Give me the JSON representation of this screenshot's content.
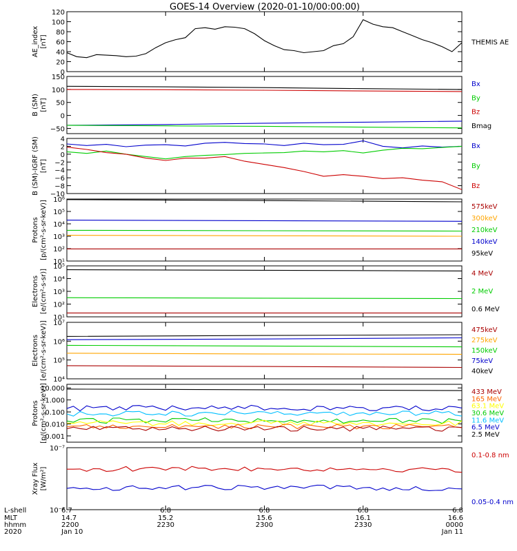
{
  "title": "GOES-14 Overview (2020-01-10/00:00:00)",
  "chart_data": [
    {
      "id": "ae",
      "type": "line",
      "ylabel": [
        "AE_index",
        "[nT]"
      ],
      "yscale": "linear",
      "ylim": [
        0,
        120
      ],
      "yticks": [
        0,
        20,
        40,
        60,
        80,
        100,
        120
      ],
      "yticklabels": [
        "0",
        "20",
        "40",
        "60",
        "80",
        "100",
        "120"
      ],
      "series": [
        {
          "name": "THEMIS AE",
          "color": "#000000",
          "x": [
            0,
            3,
            6,
            9,
            12,
            15,
            18,
            21,
            24,
            27,
            30,
            33,
            36,
            39,
            42,
            45,
            48,
            51,
            54,
            57,
            60,
            63,
            66,
            69,
            72,
            75,
            78,
            81,
            84,
            87,
            90,
            93,
            96,
            99,
            102,
            105,
            108,
            111,
            114,
            117,
            120
          ],
          "y": [
            38,
            30,
            28,
            34,
            33,
            32,
            30,
            31,
            36,
            48,
            58,
            64,
            68,
            86,
            88,
            85,
            90,
            89,
            86,
            76,
            62,
            52,
            44,
            42,
            38,
            40,
            42,
            52,
            56,
            70,
            104,
            95,
            90,
            88,
            80,
            72,
            64,
            58,
            50,
            40,
            58
          ]
        }
      ],
      "legend": [
        {
          "label": "THEMIS AE",
          "color": "#000000"
        }
      ]
    },
    {
      "id": "bsm",
      "type": "line",
      "ylabel": [
        "B (SM)",
        "[nT]"
      ],
      "yscale": "linear",
      "ylim": [
        -70,
        150
      ],
      "yticks": [
        -50,
        0,
        50,
        100,
        150
      ],
      "yticklabels": [
        "−50",
        "0",
        "50",
        "100",
        "150"
      ],
      "series": [
        {
          "name": "Bx",
          "color": "#0000cc",
          "x": [
            0,
            30,
            60,
            90,
            120
          ],
          "y": [
            -38,
            -35,
            -30,
            -26,
            -22
          ]
        },
        {
          "name": "By",
          "color": "#00cc00",
          "x": [
            0,
            30,
            60,
            90,
            120
          ],
          "y": [
            -38,
            -40,
            -42,
            -45,
            -48
          ]
        },
        {
          "name": "Bz",
          "color": "#cc0000",
          "x": [
            0,
            30,
            60,
            90,
            120
          ],
          "y": [
            100,
            99,
            97,
            94,
            92
          ]
        },
        {
          "name": "Bmag",
          "color": "#000000",
          "x": [
            0,
            30,
            60,
            90,
            120
          ],
          "y": [
            112,
            110,
            107,
            103,
            100
          ]
        }
      ],
      "legend": [
        {
          "label": "Bx",
          "color": "#0000cc"
        },
        {
          "label": "By",
          "color": "#00cc00"
        },
        {
          "label": "Bz",
          "color": "#cc0000"
        },
        {
          "label": "Bmag",
          "color": "#000000"
        }
      ]
    },
    {
      "id": "bigrf",
      "type": "line",
      "ylabel": [
        "B (SM)-IGRF (SM)",
        "[nT]"
      ],
      "yscale": "linear",
      "ylim": [
        -10,
        4
      ],
      "yticks": [
        -10,
        -8,
        -6,
        -4,
        -2,
        0,
        2,
        4
      ],
      "yticklabels": [
        "−10",
        "−8",
        "−6",
        "−4",
        "−2",
        "0",
        "2",
        "4"
      ],
      "series": [
        {
          "name": "Bx",
          "color": "#0000cc",
          "x": [
            0,
            6,
            12,
            18,
            24,
            30,
            36,
            42,
            48,
            54,
            60,
            66,
            72,
            78,
            84,
            90,
            96,
            102,
            108,
            114,
            120
          ],
          "y": [
            2.6,
            2.2,
            2.5,
            1.9,
            2.3,
            2.4,
            2.1,
            2.8,
            3.0,
            2.7,
            2.6,
            2.2,
            2.8,
            2.4,
            2.5,
            3.4,
            2.0,
            1.6,
            2.1,
            1.8,
            2.0
          ]
        },
        {
          "name": "By",
          "color": "#00cc00",
          "x": [
            0,
            6,
            12,
            18,
            24,
            30,
            36,
            42,
            48,
            54,
            60,
            66,
            72,
            78,
            84,
            90,
            96,
            102,
            108,
            114,
            120
          ],
          "y": [
            0.6,
            0.2,
            0.8,
            0.0,
            -0.6,
            -1.2,
            -0.6,
            -0.3,
            -0.1,
            0.2,
            0.3,
            0.4,
            0.8,
            0.6,
            0.9,
            0.3,
            1.0,
            1.5,
            1.4,
            1.7,
            2.0
          ]
        },
        {
          "name": "Bz",
          "color": "#cc0000",
          "x": [
            0,
            6,
            12,
            18,
            24,
            30,
            36,
            42,
            48,
            54,
            60,
            66,
            72,
            78,
            84,
            90,
            96,
            102,
            108,
            114,
            120
          ],
          "y": [
            1.8,
            1.2,
            0.4,
            0.0,
            -1.0,
            -1.6,
            -1.0,
            -1.0,
            -0.6,
            -1.8,
            -2.6,
            -3.4,
            -4.4,
            -5.6,
            -5.2,
            -5.6,
            -6.2,
            -6.0,
            -6.6,
            -7.0,
            -9.0
          ]
        }
      ],
      "legend": [
        {
          "label": "Bx",
          "color": "#0000cc"
        },
        {
          "label": "By",
          "color": "#00cc00"
        },
        {
          "label": "Bz",
          "color": "#cc0000"
        }
      ]
    },
    {
      "id": "protons_low",
      "type": "line",
      "ylabel": [
        "Protons",
        "[p/(cm²-s-sr-keV)]"
      ],
      "yscale": "log",
      "ylim": [
        10,
        1000000
      ],
      "yticks": [
        10,
        100,
        1000,
        10000,
        100000,
        1000000
      ],
      "yticklabels": [
        "10¹",
        "10²",
        "10³",
        "10⁴",
        "10⁵",
        "10⁶"
      ],
      "series": [
        {
          "name": "95keV",
          "color": "#000000",
          "x": [
            0,
            60,
            120
          ],
          "y": [
            900000,
            750000,
            600000
          ]
        },
        {
          "name": "140keV",
          "color": "#0000cc",
          "x": [
            0,
            60,
            120
          ],
          "y": [
            20000,
            18000,
            16000
          ]
        },
        {
          "name": "210keV",
          "color": "#00cc00",
          "x": [
            0,
            60,
            120
          ],
          "y": [
            3000,
            2800,
            2600
          ]
        },
        {
          "name": "300keV",
          "color": "#ffa500",
          "x": [
            0,
            60,
            120
          ],
          "y": [
            1200,
            1100,
            1000
          ]
        },
        {
          "name": "575keV",
          "color": "#aa0000",
          "x": [
            0,
            60,
            120
          ],
          "y": [
            95,
            95,
            95
          ]
        }
      ],
      "legend": [
        {
          "label": "575keV",
          "color": "#aa0000"
        },
        {
          "label": "300keV",
          "color": "#ffa500"
        },
        {
          "label": "210keV",
          "color": "#00cc00"
        },
        {
          "label": "140keV",
          "color": "#0000cc"
        },
        {
          "label": "95keV",
          "color": "#000000"
        }
      ]
    },
    {
      "id": "electrons_mev",
      "type": "line",
      "ylabel": [
        "Electrons",
        "[e/(cm²-s-sr)]"
      ],
      "yscale": "log",
      "ylim": [
        10,
        100000
      ],
      "yticks": [
        10,
        100,
        1000,
        10000,
        100000
      ],
      "yticklabels": [
        "10¹",
        "10²",
        "10³",
        "10⁴",
        "10⁵"
      ],
      "series": [
        {
          "name": "0.6 MeV",
          "color": "#000000",
          "x": [
            0,
            60,
            120
          ],
          "y": [
            50000,
            45000,
            40000
          ]
        },
        {
          "name": "2 MeV",
          "color": "#00cc00",
          "x": [
            0,
            60,
            120
          ],
          "y": [
            320,
            290,
            270
          ]
        },
        {
          "name": "4 MeV",
          "color": "#aa0000",
          "x": [
            0,
            60,
            120
          ],
          "y": [
            20,
            20,
            20
          ]
        }
      ],
      "legend": [
        {
          "label": "4 MeV",
          "color": "#aa0000"
        },
        {
          "label": "2 MeV",
          "color": "#00cc00"
        },
        {
          "label": "0.6 MeV",
          "color": "#000000"
        }
      ]
    },
    {
      "id": "electrons_kev",
      "type": "line",
      "ylabel": [
        "Electrons",
        "[e/(cm²-s-sr-keV)]"
      ],
      "yscale": "log",
      "ylim": [
        10000,
        10000000
      ],
      "yticks": [
        10000,
        100000,
        1000000,
        10000000
      ],
      "yticklabels": [
        "10⁴",
        "10⁵",
        "10⁶",
        "10⁷"
      ],
      "series": [
        {
          "name": "40keV",
          "color": "#000000",
          "x": [
            0,
            60,
            120
          ],
          "y": [
            1800000,
            2000000,
            2200000
          ]
        },
        {
          "name": "75keV",
          "color": "#0000cc",
          "x": [
            0,
            60,
            120
          ],
          "y": [
            1200000,
            1300000,
            1500000
          ]
        },
        {
          "name": "150keV",
          "color": "#00cc00",
          "x": [
            0,
            60,
            120
          ],
          "y": [
            600000,
            550000,
            500000
          ]
        },
        {
          "name": "275keV",
          "color": "#ffa500",
          "x": [
            0,
            60,
            120
          ],
          "y": [
            230000,
            210000,
            200000
          ]
        },
        {
          "name": "475keV",
          "color": "#aa0000",
          "x": [
            0,
            60,
            120
          ],
          "y": [
            50000,
            45000,
            40000
          ]
        }
      ],
      "legend": [
        {
          "label": "475keV",
          "color": "#aa0000"
        },
        {
          "label": "275keV",
          "color": "#ffa500"
        },
        {
          "label": "150keV",
          "color": "#00cc00"
        },
        {
          "label": "75keV",
          "color": "#0000cc"
        },
        {
          "label": "40keV",
          "color": "#000000"
        }
      ]
    },
    {
      "id": "protons_mev",
      "type": "line",
      "ylabel": [
        "Protons",
        "[p/(cm²-s-sr-keV)]"
      ],
      "yscale": "log",
      "ylim": [
        0.0003,
        20
      ],
      "yticks": [
        0.001,
        0.01,
        0.1,
        1,
        10
      ],
      "yticklabels": [
        "0.001",
        "0.010",
        "0.100",
        "1.000",
        "10.000"
      ],
      "series": [
        {
          "name": "2.5 MeV",
          "color": "#000000",
          "x": [
            0,
            60,
            120
          ],
          "y": [
            8,
            7,
            6
          ]
        },
        {
          "name": "6.5 MeV",
          "color": "#0000cc",
          "x": [
            0,
            60,
            120
          ],
          "y": [
            0.2,
            0.22,
            0.18
          ],
          "noisy": true
        },
        {
          "name": "11.6 MeV",
          "color": "#00bfff",
          "x": [
            0,
            60,
            120
          ],
          "y": [
            0.07,
            0.08,
            0.07
          ],
          "noisy": true
        },
        {
          "name": "30.6 MeV",
          "color": "#00cc00",
          "x": [
            0,
            60,
            120
          ],
          "y": [
            0.018,
            0.02,
            0.018
          ],
          "noisy": true
        },
        {
          "name": "63.1 MeV",
          "color": "#ffff00",
          "x": [
            0,
            60,
            120
          ],
          "y": [
            0.012,
            0.012,
            0.012
          ],
          "noisy": true
        },
        {
          "name": "165 MeV",
          "color": "#ff6600",
          "x": [
            0,
            60,
            120
          ],
          "y": [
            0.006,
            0.006,
            0.006
          ],
          "noisy": true
        },
        {
          "name": "433 MeV",
          "color": "#aa0000",
          "x": [
            0,
            60,
            120
          ],
          "y": [
            0.004,
            0.004,
            0.004
          ],
          "noisy": true
        }
      ],
      "legend": [
        {
          "label": "433 MeV",
          "color": "#aa0000"
        },
        {
          "label": "165 MeV",
          "color": "#ff6600"
        },
        {
          "label": "63.1 MeV",
          "color": "#ffff00"
        },
        {
          "label": "30.6 MeV",
          "color": "#00cc00"
        },
        {
          "label": "11.6 MeV",
          "color": "#00bfff"
        },
        {
          "label": "6.5 MeV",
          "color": "#0000cc"
        },
        {
          "label": "2.5 MeV",
          "color": "#000000"
        }
      ]
    },
    {
      "id": "xray",
      "type": "line",
      "ylabel": [
        "Xray Flux",
        "[W/m²]"
      ],
      "yscale": "log",
      "ylim": [
        1e-08,
        1e-07
      ],
      "yticks": [
        1e-08,
        1e-07
      ],
      "yticklabels": [
        "10⁻⁸",
        "10⁻⁷"
      ],
      "series": [
        {
          "name": "0.1-0.8 nm",
          "color": "#cc0000",
          "x": [
            0,
            60,
            120
          ],
          "y": [
            4.5e-08,
            4.6e-08,
            4.4e-08
          ],
          "noisy": true
        },
        {
          "name": "0.05-0.4 nm",
          "color": "#0000cc",
          "x": [
            0,
            60,
            120
          ],
          "y": [
            2.2e-08,
            2.3e-08,
            2.2e-08
          ],
          "noisy": true
        }
      ],
      "legend": [
        {
          "label": "0.1-0.8 nm",
          "color": "#cc0000"
        },
        {
          "label": "0.05-0.4 nm",
          "color": "#0000cc"
        }
      ]
    }
  ],
  "time_axis": {
    "range_minutes": [
      0,
      120
    ],
    "tick_minutes": [
      0,
      30,
      60,
      90,
      120
    ],
    "rows": [
      {
        "label": "L-shell",
        "values": [
          "6.7",
          "6.8",
          "6.8",
          "6.8",
          "6.8"
        ]
      },
      {
        "label": "MLT",
        "values": [
          "14.7",
          "15.2",
          "15.6",
          "16.1",
          "16.6"
        ]
      },
      {
        "label": "hhmm",
        "values": [
          "2200",
          "2230",
          "2300",
          "2330",
          "0000"
        ]
      },
      {
        "label": "2020",
        "values": [
          "Jan 10",
          "",
          "",
          "",
          "Jan 11"
        ]
      }
    ]
  }
}
